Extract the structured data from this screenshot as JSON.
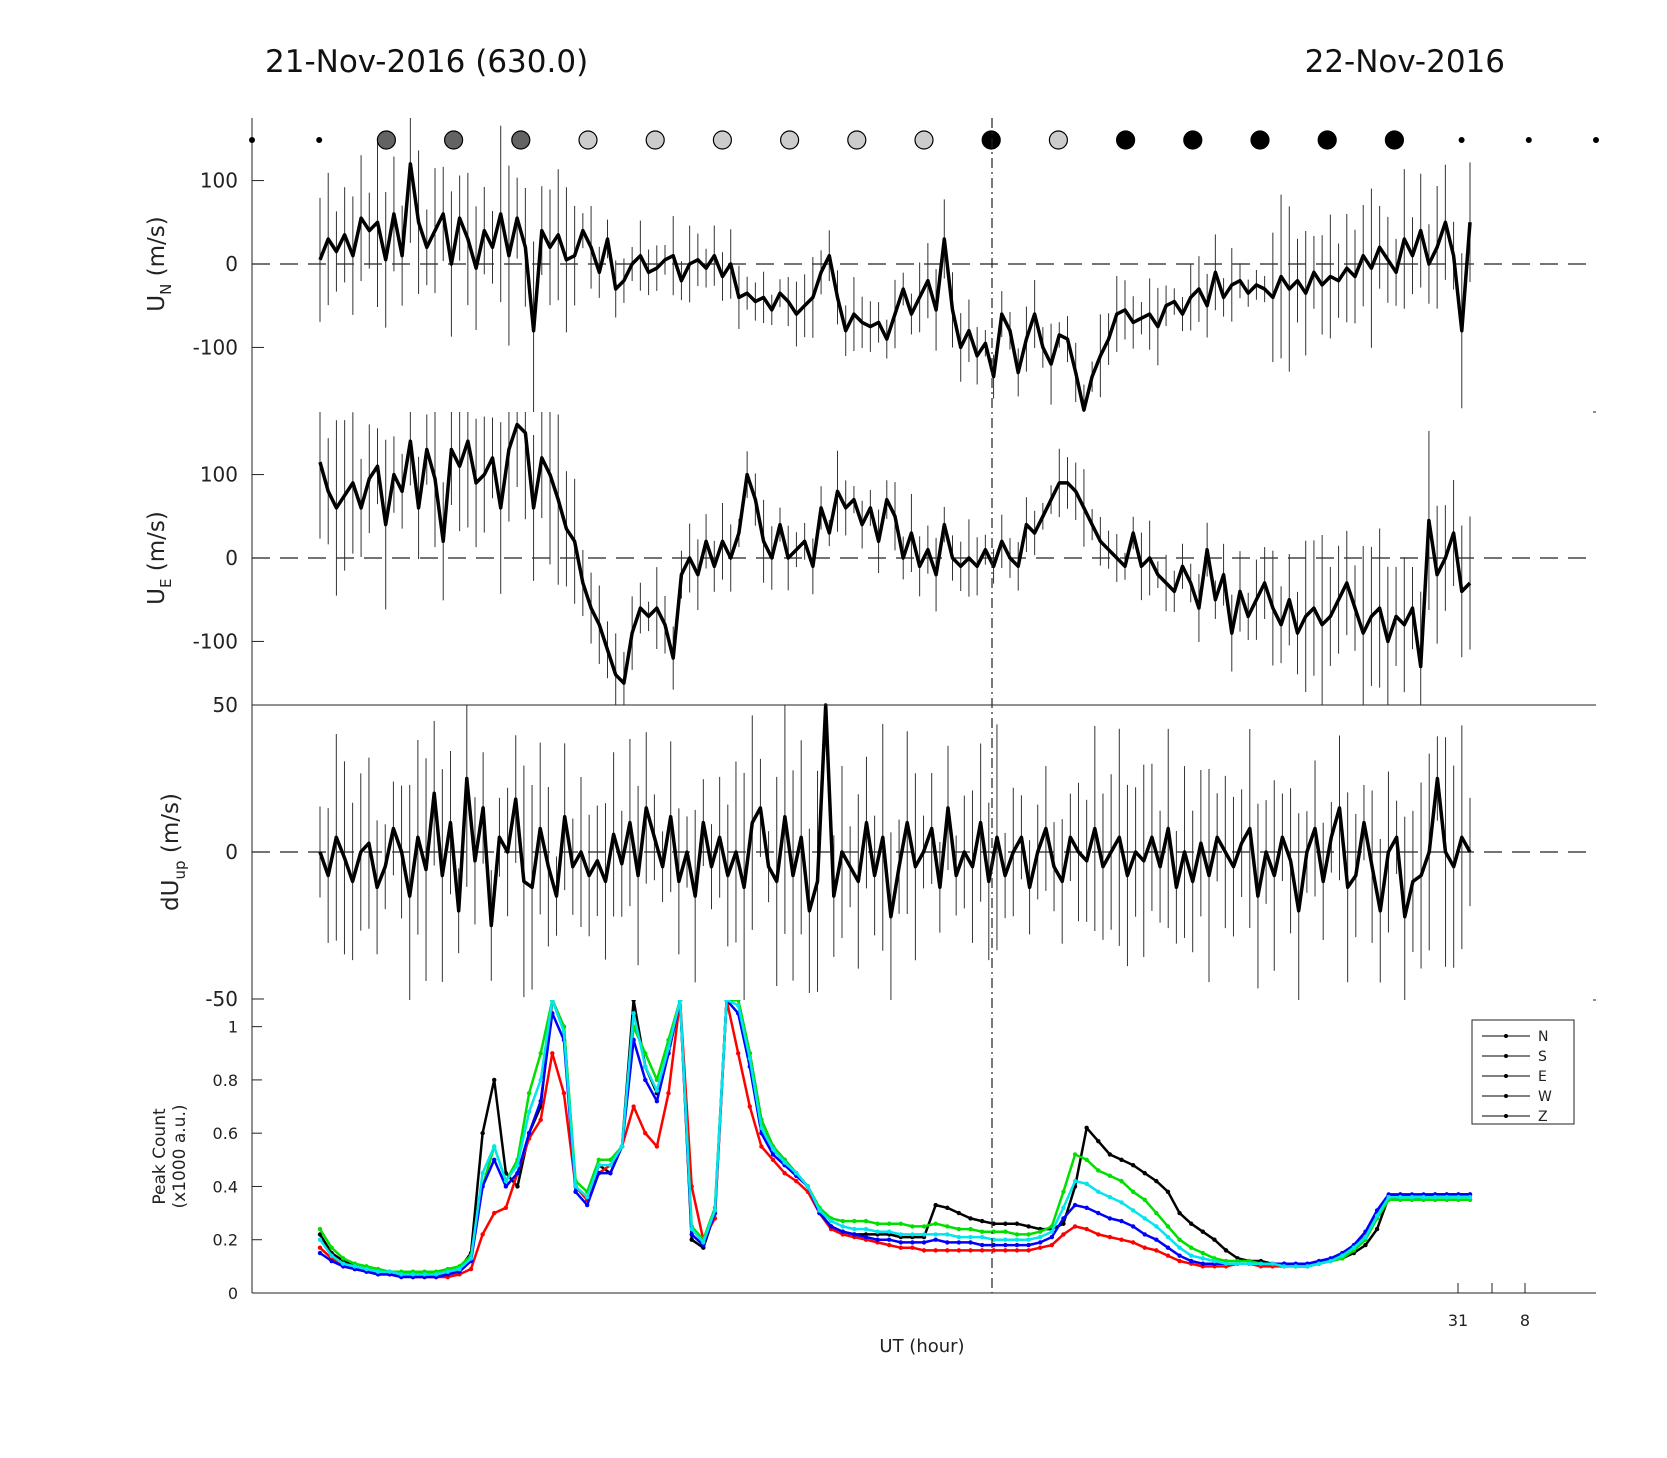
{
  "header": {
    "title_left": "21-Nov-2016 (630.0)",
    "title_right": "22-Nov-2016"
  },
  "colors": {
    "N": "#000000",
    "S": "#ff0000",
    "E": "#00e000",
    "W": "#0000ff",
    "Z": "#00e5ee",
    "circle_dark": "#636363",
    "circle_light": "#cccccc",
    "circle_black": "#000000"
  },
  "chart_data": [
    {
      "type": "line",
      "panel": "UN",
      "ylabel": "U",
      "ylabel_sub": "N",
      "ylabel_unit": "(m/s)",
      "ylim": [
        -175,
        175
      ],
      "yticks": [
        100,
        0,
        -100
      ],
      "x_index_range": [
        0,
        140
      ],
      "cloud_indicator": [
        "dot",
        "dot",
        "dark",
        "dark",
        "dark",
        "light",
        "light",
        "light",
        "light",
        "light",
        "light",
        "black",
        "light",
        "black",
        "black",
        "black",
        "black",
        "black",
        "dot",
        "dot",
        "dot"
      ],
      "series": [
        {
          "name": "U_N",
          "values": [
            5,
            30,
            15,
            35,
            10,
            55,
            40,
            50,
            5,
            60,
            10,
            120,
            50,
            20,
            40,
            60,
            0,
            55,
            30,
            -5,
            40,
            20,
            60,
            10,
            55,
            20,
            -80,
            40,
            20,
            35,
            5,
            10,
            40,
            20,
            -10,
            30,
            -30,
            -20,
            0,
            10,
            -10,
            -5,
            5,
            10,
            -20,
            0,
            5,
            -5,
            10,
            -15,
            0,
            -40,
            -35,
            -45,
            -40,
            -55,
            -35,
            -45,
            -60,
            -50,
            -40,
            -10,
            10,
            -40,
            -80,
            -60,
            -70,
            -75,
            -70,
            -90,
            -60,
            -30,
            -60,
            -40,
            -20,
            -55,
            30,
            -55,
            -100,
            -80,
            -110,
            -95,
            -135,
            -60,
            -80,
            -130,
            -90,
            -60,
            -100,
            -120,
            -85,
            -90,
            -130,
            -175,
            -135,
            -110,
            -90,
            -60,
            -55,
            -70,
            -65,
            -60,
            -75,
            -50,
            -45,
            -60,
            -40,
            -30,
            -50,
            -10,
            -40,
            -25,
            -20,
            -35,
            -25,
            -30,
            -40,
            -15,
            -30,
            -20,
            -35,
            -10,
            -25,
            -15,
            -20,
            -5,
            -15,
            10,
            -5,
            20,
            5,
            -10,
            30,
            10,
            40,
            0,
            20,
            50,
            10,
            -80,
            50
          ]
        }
      ]
    },
    {
      "type": "line",
      "panel": "UE",
      "ylabel": "U",
      "ylabel_sub": "E",
      "ylabel_unit": "(m/s)",
      "ylim": [
        -175,
        175
      ],
      "yticks": [
        100,
        0,
        -100
      ],
      "x_index_range": [
        0,
        140
      ],
      "series": [
        {
          "name": "U_E",
          "values": [
            115,
            80,
            60,
            75,
            90,
            60,
            95,
            110,
            40,
            100,
            80,
            140,
            60,
            130,
            95,
            20,
            130,
            110,
            140,
            90,
            100,
            120,
            60,
            130,
            160,
            150,
            60,
            120,
            100,
            70,
            35,
            20,
            -30,
            -60,
            -80,
            -110,
            -140,
            -150,
            -90,
            -60,
            -70,
            -60,
            -80,
            -120,
            -20,
            0,
            -20,
            20,
            -10,
            20,
            0,
            30,
            100,
            70,
            20,
            0,
            40,
            0,
            10,
            20,
            -10,
            60,
            30,
            80,
            60,
            70,
            40,
            60,
            20,
            70,
            50,
            0,
            30,
            -10,
            10,
            -20,
            40,
            0,
            -10,
            0,
            -10,
            10,
            -10,
            20,
            0,
            -10,
            40,
            30,
            50,
            70,
            90,
            90,
            80,
            60,
            40,
            20,
            10,
            0,
            -10,
            30,
            -10,
            0,
            -20,
            -30,
            -40,
            -10,
            -30,
            -60,
            10,
            -50,
            -20,
            -90,
            -40,
            -70,
            -50,
            -30,
            -60,
            -80,
            -50,
            -90,
            -70,
            -60,
            -80,
            -70,
            -50,
            -30,
            -60,
            -90,
            -70,
            -60,
            -100,
            -70,
            -80,
            -60,
            -130,
            45,
            -20,
            0,
            30,
            -40,
            -30
          ]
        }
      ]
    },
    {
      "type": "line",
      "panel": "dUup",
      "ylabel": "dU",
      "ylabel_sub": "up",
      "ylabel_unit": "(m/s)",
      "ylim": [
        -50,
        50
      ],
      "yticks": [
        50,
        0,
        -50
      ],
      "x_index_range": [
        0,
        140
      ],
      "series": [
        {
          "name": "dU_up",
          "values": [
            0,
            -8,
            5,
            -2,
            -10,
            0,
            3,
            -12,
            -5,
            8,
            0,
            -15,
            5,
            -6,
            20,
            -8,
            10,
            -20,
            25,
            -3,
            15,
            -25,
            5,
            0,
            18,
            -10,
            -12,
            8,
            -5,
            -15,
            12,
            -5,
            0,
            -8,
            -3,
            -10,
            6,
            -4,
            10,
            -8,
            15,
            5,
            -5,
            12,
            -10,
            0,
            -15,
            10,
            -5,
            5,
            -8,
            0,
            -12,
            10,
            15,
            -5,
            -10,
            12,
            -8,
            5,
            -20,
            -10,
            50,
            -15,
            0,
            -5,
            -10,
            10,
            -8,
            5,
            -22,
            -5,
            10,
            -5,
            0,
            8,
            -12,
            15,
            -8,
            0,
            -5,
            10,
            -10,
            5,
            -8,
            0,
            5,
            -12,
            0,
            8,
            -5,
            -10,
            5,
            0,
            -3,
            8,
            -5,
            0,
            5,
            -8,
            0,
            -3,
            5,
            -5,
            8,
            -12,
            0,
            -10,
            3,
            -8,
            5,
            0,
            -5,
            3,
            8,
            -15,
            0,
            -8,
            5,
            -3,
            -20,
            0,
            8,
            -10,
            5,
            15,
            -12,
            -8,
            10,
            -5,
            -20,
            0,
            5,
            -22,
            -10,
            -8,
            0,
            25,
            0,
            -5,
            5,
            0
          ]
        }
      ]
    },
    {
      "type": "line",
      "panel": "PeakCount",
      "ylabel": "Peak Count",
      "ylabel_line2": "(x1000 a.u.)",
      "xlabel": "UT (hour)",
      "ylim": [
        0,
        1.1
      ],
      "yticks": [
        0,
        0.2,
        0.4,
        0.6,
        0.8,
        1
      ],
      "xticks": [
        "31",
        "8"
      ],
      "legend": [
        "N",
        "S",
        "E",
        "W",
        "Z"
      ],
      "legend_position": "top-right",
      "x_index_range": [
        0,
        140
      ],
      "series": [
        {
          "name": "N",
          "values": [
            0.22,
            0.15,
            0.12,
            0.1,
            0.09,
            0.08,
            0.08,
            0.07,
            0.07,
            0.07,
            0.07,
            0.08,
            0.09,
            0.15,
            0.6,
            0.8,
            0.45,
            0.4,
            0.6,
            0.7,
            1.1,
            1.0,
            0.4,
            0.35,
            0.48,
            0.45,
            0.55,
            1.1,
            0.85,
            0.75,
            0.9,
            1.1,
            0.2,
            0.17,
            0.3,
            1.1,
            1.1,
            0.9,
            0.65,
            0.55,
            0.5,
            0.45,
            0.4,
            0.3,
            0.25,
            0.23,
            0.22,
            0.22,
            0.22,
            0.22,
            0.21,
            0.21,
            0.21,
            0.33,
            0.32,
            0.3,
            0.28,
            0.27,
            0.26,
            0.26,
            0.26,
            0.25,
            0.24,
            0.24,
            0.26,
            0.4,
            0.62,
            0.57,
            0.52,
            0.5,
            0.48,
            0.45,
            0.42,
            0.38,
            0.3,
            0.26,
            0.23,
            0.2,
            0.16,
            0.13,
            0.12,
            0.12,
            0.11,
            0.11,
            0.1,
            0.1,
            0.11,
            0.12,
            0.13,
            0.15,
            0.18,
            0.24,
            0.36,
            0.37,
            0.36,
            0.36,
            0.37,
            0.37,
            0.37,
            0.37
          ]
        },
        {
          "name": "S",
          "values": [
            0.17,
            0.13,
            0.1,
            0.09,
            0.08,
            0.07,
            0.07,
            0.07,
            0.06,
            0.06,
            0.06,
            0.06,
            0.07,
            0.09,
            0.22,
            0.3,
            0.32,
            0.45,
            0.58,
            0.65,
            0.9,
            0.75,
            0.4,
            0.35,
            0.45,
            0.48,
            0.55,
            0.7,
            0.6,
            0.55,
            0.75,
            1.1,
            0.4,
            0.2,
            0.28,
            1.1,
            0.9,
            0.7,
            0.55,
            0.5,
            0.45,
            0.42,
            0.38,
            0.3,
            0.24,
            0.22,
            0.21,
            0.2,
            0.19,
            0.18,
            0.17,
            0.17,
            0.16,
            0.16,
            0.16,
            0.16,
            0.16,
            0.16,
            0.16,
            0.16,
            0.16,
            0.16,
            0.17,
            0.18,
            0.22,
            0.25,
            0.24,
            0.22,
            0.21,
            0.2,
            0.19,
            0.17,
            0.16,
            0.14,
            0.12,
            0.11,
            0.1,
            0.1,
            0.1,
            0.11,
            0.11,
            0.1,
            0.1,
            0.1,
            0.1,
            0.1,
            0.11,
            0.12,
            0.14,
            0.17,
            0.22,
            0.3,
            0.36,
            0.35,
            0.35,
            0.35,
            0.35,
            0.35,
            0.35,
            0.35
          ]
        },
        {
          "name": "E",
          "values": [
            0.24,
            0.17,
            0.13,
            0.11,
            0.1,
            0.09,
            0.08,
            0.08,
            0.08,
            0.08,
            0.08,
            0.09,
            0.1,
            0.14,
            0.4,
            0.55,
            0.42,
            0.5,
            0.75,
            0.9,
            1.1,
            1.0,
            0.42,
            0.38,
            0.5,
            0.5,
            0.55,
            1.0,
            0.9,
            0.8,
            0.95,
            1.1,
            0.25,
            0.2,
            0.32,
            1.1,
            1.1,
            0.9,
            0.65,
            0.55,
            0.5,
            0.45,
            0.4,
            0.32,
            0.28,
            0.27,
            0.27,
            0.27,
            0.26,
            0.26,
            0.26,
            0.25,
            0.25,
            0.26,
            0.25,
            0.24,
            0.24,
            0.23,
            0.23,
            0.23,
            0.22,
            0.22,
            0.23,
            0.25,
            0.38,
            0.52,
            0.5,
            0.46,
            0.44,
            0.42,
            0.38,
            0.35,
            0.3,
            0.25,
            0.2,
            0.17,
            0.15,
            0.13,
            0.12,
            0.12,
            0.12,
            0.11,
            0.11,
            0.1,
            0.1,
            0.1,
            0.11,
            0.12,
            0.13,
            0.16,
            0.2,
            0.28,
            0.35,
            0.35,
            0.35,
            0.35,
            0.35,
            0.35,
            0.35,
            0.35
          ]
        },
        {
          "name": "W",
          "values": [
            0.15,
            0.12,
            0.1,
            0.09,
            0.08,
            0.07,
            0.07,
            0.06,
            0.06,
            0.06,
            0.06,
            0.07,
            0.08,
            0.12,
            0.4,
            0.5,
            0.4,
            0.45,
            0.6,
            0.72,
            1.05,
            0.95,
            0.38,
            0.33,
            0.45,
            0.45,
            0.55,
            0.95,
            0.8,
            0.72,
            0.9,
            1.1,
            0.22,
            0.18,
            0.3,
            1.1,
            1.05,
            0.85,
            0.6,
            0.52,
            0.48,
            0.44,
            0.4,
            0.3,
            0.25,
            0.23,
            0.22,
            0.21,
            0.2,
            0.2,
            0.19,
            0.19,
            0.19,
            0.2,
            0.19,
            0.19,
            0.19,
            0.18,
            0.18,
            0.18,
            0.18,
            0.18,
            0.19,
            0.21,
            0.28,
            0.33,
            0.32,
            0.3,
            0.28,
            0.27,
            0.25,
            0.22,
            0.2,
            0.17,
            0.14,
            0.12,
            0.11,
            0.11,
            0.11,
            0.11,
            0.11,
            0.11,
            0.11,
            0.11,
            0.11,
            0.11,
            0.12,
            0.13,
            0.15,
            0.18,
            0.23,
            0.31,
            0.37,
            0.37,
            0.37,
            0.37,
            0.37,
            0.37,
            0.37,
            0.37
          ]
        },
        {
          "name": "Z",
          "values": [
            0.2,
            0.14,
            0.11,
            0.1,
            0.09,
            0.08,
            0.08,
            0.07,
            0.07,
            0.07,
            0.07,
            0.08,
            0.09,
            0.13,
            0.45,
            0.55,
            0.42,
            0.48,
            0.68,
            0.8,
            1.1,
            0.98,
            0.4,
            0.36,
            0.48,
            0.48,
            0.55,
            1.05,
            0.85,
            0.76,
            0.92,
            1.1,
            0.24,
            0.19,
            0.31,
            1.1,
            1.08,
            0.88,
            0.62,
            0.54,
            0.49,
            0.45,
            0.4,
            0.31,
            0.27,
            0.25,
            0.24,
            0.24,
            0.23,
            0.23,
            0.22,
            0.22,
            0.22,
            0.22,
            0.22,
            0.21,
            0.21,
            0.21,
            0.2,
            0.2,
            0.2,
            0.2,
            0.21,
            0.23,
            0.32,
            0.42,
            0.41,
            0.38,
            0.36,
            0.34,
            0.31,
            0.28,
            0.25,
            0.21,
            0.17,
            0.14,
            0.13,
            0.12,
            0.11,
            0.11,
            0.11,
            0.11,
            0.11,
            0.1,
            0.1,
            0.1,
            0.11,
            0.12,
            0.14,
            0.17,
            0.21,
            0.29,
            0.36,
            0.36,
            0.36,
            0.36,
            0.36,
            0.36,
            0.36,
            0.36
          ]
        }
      ]
    }
  ]
}
